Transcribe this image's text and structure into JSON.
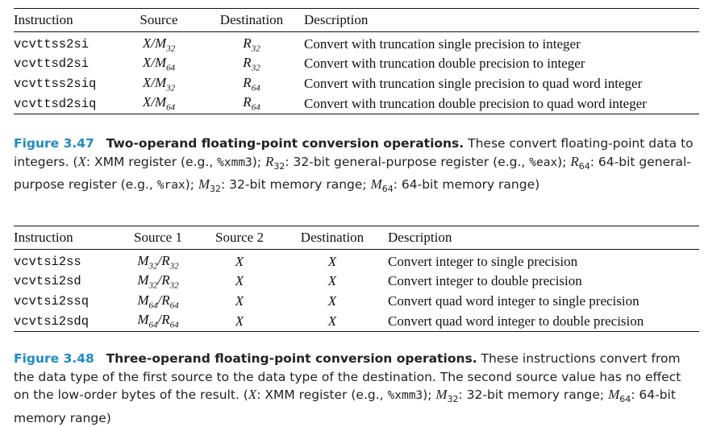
{
  "table1": {
    "headers": [
      "Instruction",
      "Source",
      "Destination",
      "Description"
    ],
    "rows": [
      {
        "instr": "vcvttss2si",
        "src": "X/M32",
        "dst": "R32",
        "desc": "Convert with truncation single precision to integer"
      },
      {
        "instr": "vcvttsd2si",
        "src": "X/M64",
        "dst": "R32",
        "desc": "Convert with truncation double precision to integer"
      },
      {
        "instr": "vcvttss2siq",
        "src": "X/M32",
        "dst": "R64",
        "desc": "Convert with truncation single precision to quad word integer"
      },
      {
        "instr": "vcvttsd2siq",
        "src": "X/M64",
        "dst": "R64",
        "desc": "Convert with truncation double precision to quad word integer"
      }
    ]
  },
  "caption1": {
    "fig": "Figure 3.47",
    "title": "Two-operand floating-point conversion operations.",
    "t1": " These convert floating-point data to integers. (",
    "x": "X",
    "t2": ": XMM register (e.g., ",
    "m1": "%xmm3",
    "t3": "); ",
    "t4": ": 32-bit general-purpose register (e.g., ",
    "m2": "%eax",
    "t5": "); ",
    "t6": ": 64-bit general-purpose register (e.g., ",
    "m3": "%rax",
    "t7": "); ",
    "t8": ": 32-bit memory range; ",
    "t9": ": 64-bit memory range)"
  },
  "table2": {
    "headers": [
      "Instruction",
      "Source 1",
      "Source 2",
      "Destination",
      "Description"
    ],
    "rows": [
      {
        "instr": "vcvtsi2ss",
        "src1": "M32/R32",
        "src2": "X",
        "dst": "X",
        "desc": "Convert integer to single precision"
      },
      {
        "instr": "vcvtsi2sd",
        "src1": "M32/R32",
        "src2": "X",
        "dst": "X",
        "desc": "Convert integer to double precision"
      },
      {
        "instr": "vcvtsi2ssq",
        "src1": "M64/R64",
        "src2": "X",
        "dst": "X",
        "desc": "Convert quad word integer to single precision"
      },
      {
        "instr": "vcvtsi2sdq",
        "src1": "M64/R64",
        "src2": "X",
        "dst": "X",
        "desc": "Convert quad word integer to double precision"
      }
    ]
  },
  "caption2": {
    "fig": "Figure 3.48",
    "title": "Three-operand floating-point conversion operations.",
    "t1": " These instructions convert from the data type of the first source to the data type of the destination. The second source value has no effect on the low-order bytes of the result. (",
    "x": "X",
    "t2": ": XMM register (e.g., ",
    "m1": "%xmm3",
    "t3": "); ",
    "t4": ": 32-bit memory range; ",
    "t5": ": 64-bit memory range)"
  }
}
